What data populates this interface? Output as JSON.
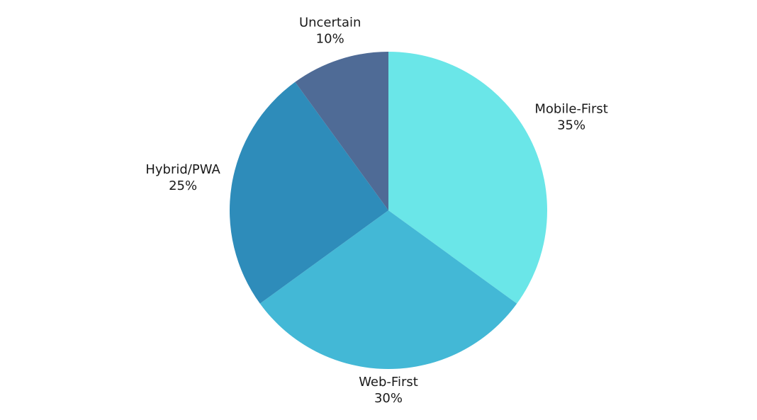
{
  "chart_data": {
    "type": "pie",
    "categories": [
      "Mobile-First",
      "Web-First",
      "Hybrid/PWA",
      "Uncertain"
    ],
    "values": [
      35,
      30,
      25,
      10
    ],
    "value_labels": [
      "35%",
      "30%",
      "25%",
      "10%"
    ],
    "colors": [
      "#6ae6e8",
      "#43b8d6",
      "#2e8cba",
      "#4f6b96"
    ]
  }
}
